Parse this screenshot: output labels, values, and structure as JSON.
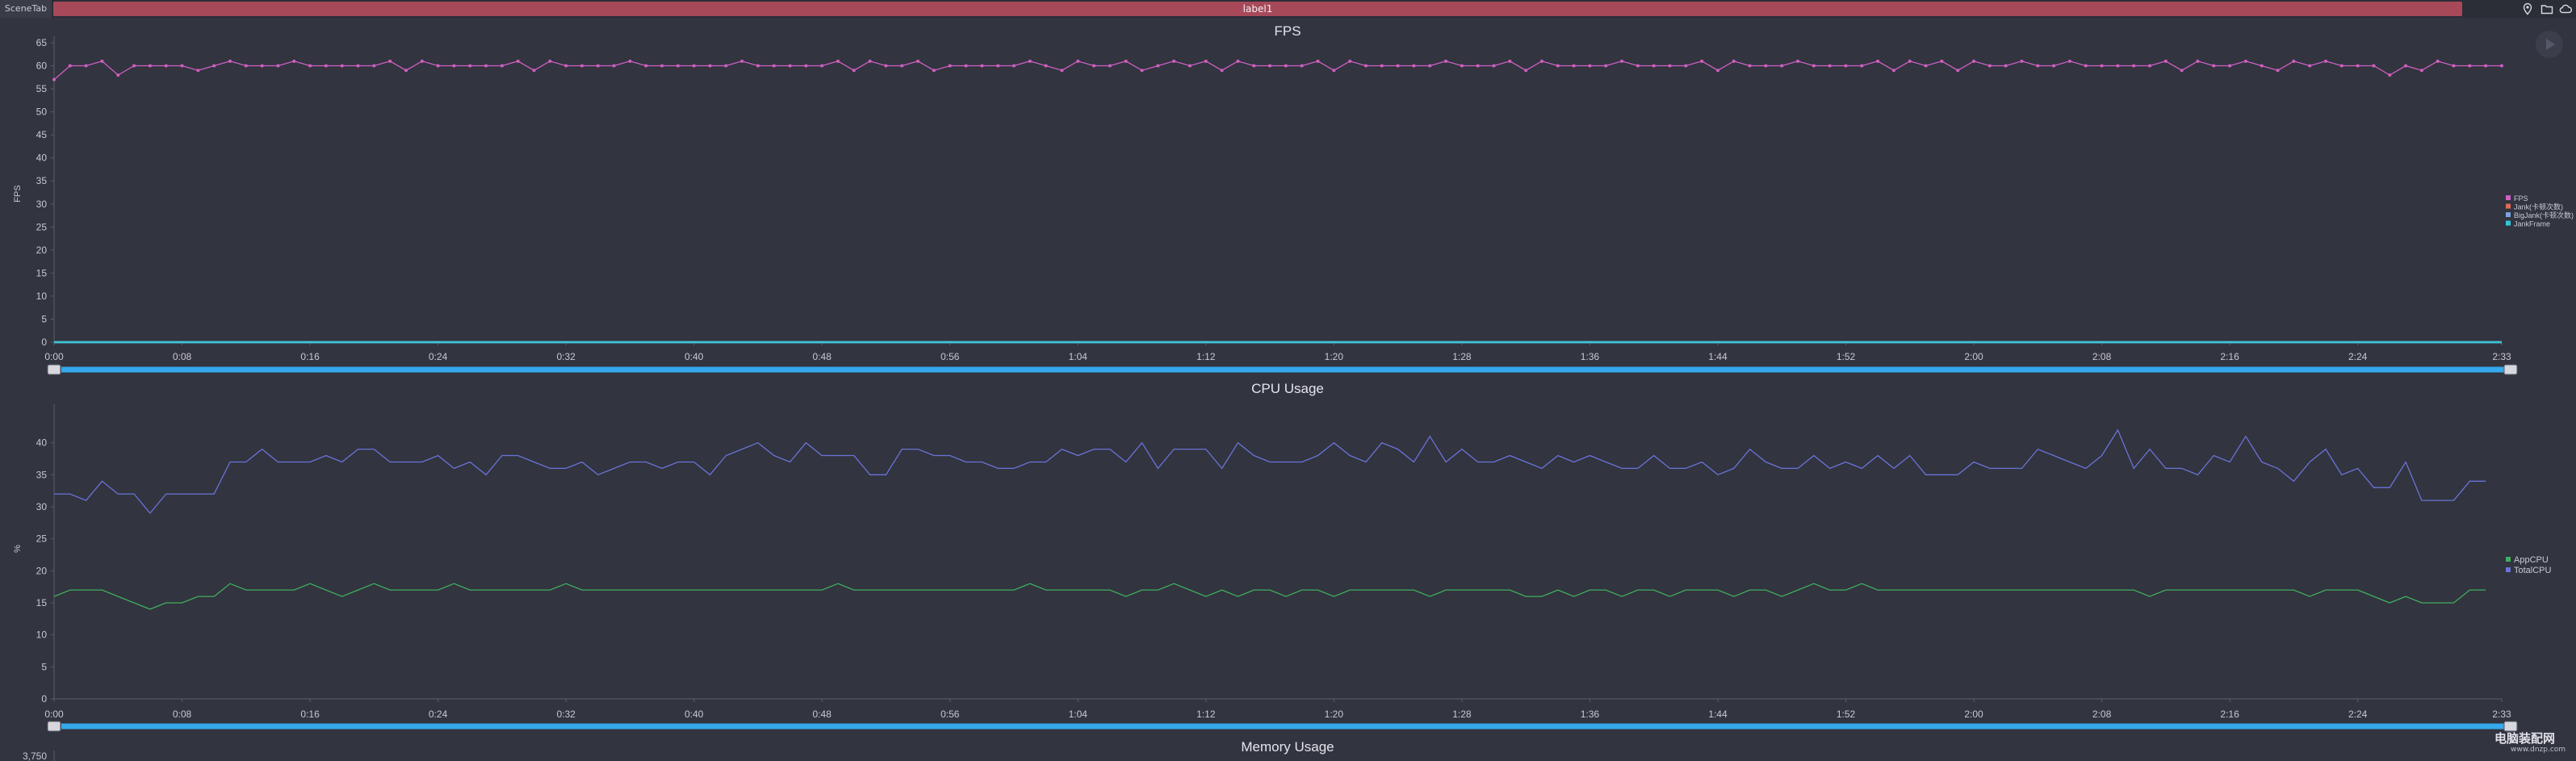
{
  "top": {
    "scene_tab": "SceneTab",
    "label": "label1"
  },
  "colors": {
    "background": "#32343f",
    "title_bar": "#a8495a",
    "fps": "#d05fc4",
    "jank": "#e06a5a",
    "big_jank": "#7aa2e0",
    "jank_frame": "#33c8d8",
    "app_cpu": "#3fae5e",
    "total_cpu": "#6a73d8",
    "slider": "#34a9ec"
  },
  "chart_data": [
    {
      "type": "line",
      "title": "FPS",
      "ylabel": "FPS",
      "ylim": [
        0,
        65
      ],
      "yticks": [
        "0",
        "5",
        "10",
        "15",
        "20",
        "25",
        "30",
        "35",
        "40",
        "45",
        "50",
        "55",
        "60",
        "65"
      ],
      "xlim": [
        0,
        153
      ],
      "xticks": [
        "0:00",
        "0:08",
        "0:16",
        "0:24",
        "0:32",
        "0:40",
        "0:48",
        "0:56",
        "1:04",
        "1:12",
        "1:20",
        "1:28",
        "1:36",
        "1:44",
        "1:52",
        "2:00",
        "2:08",
        "2:16",
        "2:24",
        "2:33"
      ],
      "legend": "right",
      "series": [
        {
          "name": "FPS",
          "color": "#d05fc4",
          "values": [
            57,
            60,
            60,
            61,
            58,
            60,
            60,
            60,
            60,
            59,
            60,
            61,
            60,
            60,
            60,
            61,
            60,
            60,
            60,
            60,
            60,
            61,
            59,
            61,
            60,
            60,
            60,
            60,
            60,
            61,
            59,
            61,
            60,
            60,
            60,
            60,
            61,
            60,
            60,
            60,
            60,
            60,
            60,
            61,
            60,
            60,
            60,
            60,
            60,
            61,
            59,
            61,
            60,
            60,
            61,
            59,
            60,
            60,
            60,
            60,
            60,
            61,
            60,
            59,
            61,
            60,
            60,
            61,
            59,
            60,
            61,
            60,
            61,
            59,
            61,
            60,
            60,
            60,
            60,
            61,
            59,
            61,
            60,
            60,
            60,
            60,
            60,
            61,
            60,
            60,
            60,
            61,
            59,
            61,
            60,
            60,
            60,
            60,
            61,
            60,
            60,
            60,
            60,
            61,
            59,
            61,
            60,
            60,
            60,
            61,
            60,
            60,
            60,
            60,
            61,
            59,
            61,
            60,
            61,
            59,
            61,
            60,
            60,
            61,
            60,
            60,
            61,
            60,
            60,
            60,
            60,
            60,
            61,
            59,
            61,
            60,
            60,
            61,
            60,
            59,
            61,
            60,
            61,
            60,
            60,
            60,
            58,
            60,
            59,
            61,
            60,
            60,
            60,
            60
          ]
        },
        {
          "name": "Jank(卡顿次数)",
          "color": "#e06a5a",
          "values": [
            0,
            0,
            0,
            0,
            0,
            0,
            0,
            0,
            0,
            0,
            0,
            0,
            0,
            0,
            0,
            0,
            0,
            0,
            0,
            0,
            0,
            0,
            0,
            0,
            0,
            0,
            0,
            0,
            0,
            0,
            0,
            0,
            0,
            0,
            0,
            0,
            0,
            0,
            0,
            0,
            0,
            0,
            0,
            0,
            0,
            0,
            0,
            0,
            0,
            0,
            0,
            0,
            0,
            0,
            0,
            0,
            0,
            0,
            0,
            0,
            0,
            0,
            0,
            0,
            0,
            0,
            0,
            0,
            0,
            0,
            0,
            0,
            0,
            0,
            0,
            0,
            0,
            0,
            0,
            0,
            0,
            0,
            0,
            0,
            0,
            0,
            0,
            0,
            0,
            0,
            0,
            0,
            0,
            0,
            0,
            0,
            0,
            0,
            0,
            0,
            0,
            0,
            0,
            0,
            0,
            0,
            0,
            0,
            0,
            0,
            0,
            0,
            0,
            0,
            0,
            0,
            0,
            0,
            0,
            0,
            0,
            0,
            0,
            0,
            0,
            0,
            0,
            0,
            0,
            0,
            0,
            0,
            0,
            0,
            0,
            0,
            0,
            0,
            0,
            0,
            0,
            0,
            0,
            0,
            0,
            0,
            0,
            0,
            0,
            0,
            0,
            0,
            0,
            0
          ]
        },
        {
          "name": "BigJank(卡顿次数)",
          "color": "#7aa2e0",
          "values": [
            0,
            0,
            0,
            0,
            0,
            0,
            0,
            0,
            0,
            0,
            0,
            0,
            0,
            0,
            0,
            0,
            0,
            0,
            0,
            0,
            0,
            0,
            0,
            0,
            0,
            0,
            0,
            0,
            0,
            0,
            0,
            0,
            0,
            0,
            0,
            0,
            0,
            0,
            0,
            0,
            0,
            0,
            0,
            0,
            0,
            0,
            0,
            0,
            0,
            0,
            0,
            0,
            0,
            0,
            0,
            0,
            0,
            0,
            0,
            0,
            0,
            0,
            0,
            0,
            0,
            0,
            0,
            0,
            0,
            0,
            0,
            0,
            0,
            0,
            0,
            0,
            0,
            0,
            0,
            0,
            0,
            0,
            0,
            0,
            0,
            0,
            0,
            0,
            0,
            0,
            0,
            0,
            0,
            0,
            0,
            0,
            0,
            0,
            0,
            0,
            0,
            0,
            0,
            0,
            0,
            0,
            0,
            0,
            0,
            0,
            0,
            0,
            0,
            0,
            0,
            0,
            0,
            0,
            0,
            0,
            0,
            0,
            0,
            0,
            0,
            0,
            0,
            0,
            0,
            0,
            0,
            0,
            0,
            0,
            0,
            0,
            0,
            0,
            0,
            0,
            0,
            0,
            0,
            0,
            0,
            0,
            0,
            0,
            0,
            0,
            0,
            0,
            0,
            0
          ]
        },
        {
          "name": "JankFrame",
          "color": "#33c8d8",
          "values": [
            0,
            0,
            0,
            0,
            0,
            0,
            0,
            0,
            0,
            0,
            0,
            0,
            0,
            0,
            0,
            0,
            0,
            0,
            0,
            0,
            0,
            0,
            0,
            0,
            0,
            0,
            0,
            0,
            0,
            0,
            0,
            0,
            0,
            0,
            0,
            0,
            0,
            0,
            0,
            0,
            0,
            0,
            0,
            0,
            0,
            0,
            0,
            0,
            0,
            0,
            0,
            0,
            0,
            0,
            0,
            0,
            0,
            0,
            0,
            0,
            0,
            0,
            0,
            0,
            0,
            0,
            0,
            0,
            0,
            0,
            0,
            0,
            0,
            0,
            0,
            0,
            0,
            0,
            0,
            0,
            0,
            0,
            0,
            0,
            0,
            0,
            0,
            0,
            0,
            0,
            0,
            0,
            0,
            0,
            0,
            0,
            0,
            0,
            0,
            0,
            0,
            0,
            0,
            0,
            0,
            0,
            0,
            0,
            0,
            0,
            0,
            0,
            0,
            0,
            0,
            0,
            0,
            0,
            0,
            0,
            0,
            0,
            0,
            0,
            0,
            0,
            0,
            0,
            0,
            0,
            0,
            0,
            0,
            0,
            0,
            0,
            0,
            0,
            0,
            0,
            0,
            0,
            0,
            0,
            0,
            0,
            0,
            0,
            0,
            0,
            0,
            0,
            0,
            0
          ]
        }
      ]
    },
    {
      "type": "line",
      "title": "CPU Usage",
      "ylabel": "%",
      "ylim": [
        0,
        45
      ],
      "yticks": [
        "0",
        "5",
        "10",
        "15",
        "20",
        "25",
        "30",
        "35",
        "40"
      ],
      "xlim": [
        0,
        153
      ],
      "xticks": [
        "0:00",
        "0:08",
        "0:16",
        "0:24",
        "0:32",
        "0:40",
        "0:48",
        "0:56",
        "1:04",
        "1:12",
        "1:20",
        "1:28",
        "1:36",
        "1:44",
        "1:52",
        "2:00",
        "2:08",
        "2:16",
        "2:24",
        "2:33"
      ],
      "legend": "right",
      "series": [
        {
          "name": "AppCPU",
          "color": "#3fae5e",
          "values": [
            16,
            17,
            17,
            17,
            16,
            15,
            14,
            15,
            15,
            16,
            16,
            18,
            17,
            17,
            17,
            17,
            18,
            17,
            16,
            17,
            18,
            17,
            17,
            17,
            17,
            18,
            17,
            17,
            17,
            17,
            17,
            17,
            18,
            17,
            17,
            17,
            17,
            17,
            17,
            17,
            17,
            17,
            17,
            17,
            17,
            17,
            17,
            17,
            17,
            18,
            17,
            17,
            17,
            17,
            17,
            17,
            17,
            17,
            17,
            17,
            17,
            18,
            17,
            17,
            17,
            17,
            17,
            16,
            17,
            17,
            18,
            17,
            16,
            17,
            16,
            17,
            17,
            16,
            17,
            17,
            16,
            17,
            17,
            17,
            17,
            17,
            16,
            17,
            17,
            17,
            17,
            17,
            16,
            16,
            17,
            16,
            17,
            17,
            16,
            17,
            17,
            16,
            17,
            17,
            17,
            16,
            17,
            17,
            16,
            17,
            18,
            17,
            17,
            18,
            17,
            17,
            17,
            17,
            17,
            17,
            17,
            17,
            17,
            17,
            17,
            17,
            17,
            17,
            17,
            17,
            17,
            16,
            17,
            17,
            17,
            17,
            17,
            17,
            17,
            17,
            17,
            16,
            17,
            17,
            17,
            16,
            15,
            16,
            15,
            15,
            15,
            17,
            17
          ]
        },
        {
          "name": "TotalCPU",
          "color": "#6a73d8",
          "values": [
            32,
            32,
            31,
            34,
            32,
            32,
            29,
            32,
            32,
            32,
            32,
            37,
            37,
            39,
            37,
            37,
            37,
            38,
            37,
            39,
            39,
            37,
            37,
            37,
            38,
            36,
            37,
            35,
            38,
            38,
            37,
            36,
            36,
            37,
            35,
            36,
            37,
            37,
            36,
            37,
            37,
            35,
            38,
            39,
            40,
            38,
            37,
            40,
            38,
            38,
            38,
            35,
            35,
            39,
            39,
            38,
            38,
            37,
            37,
            36,
            36,
            37,
            37,
            39,
            38,
            39,
            39,
            37,
            40,
            36,
            39,
            39,
            39,
            36,
            40,
            38,
            37,
            37,
            37,
            38,
            40,
            38,
            37,
            40,
            39,
            37,
            41,
            37,
            39,
            37,
            37,
            38,
            37,
            36,
            38,
            37,
            38,
            37,
            36,
            36,
            38,
            36,
            36,
            37,
            35,
            36,
            39,
            37,
            36,
            36,
            38,
            36,
            37,
            36,
            38,
            36,
            38,
            35,
            35,
            35,
            37,
            36,
            36,
            36,
            39,
            38,
            37,
            36,
            38,
            42,
            36,
            39,
            36,
            36,
            35,
            38,
            37,
            41,
            37,
            36,
            34,
            37,
            39,
            35,
            36,
            33,
            33,
            37,
            31,
            31,
            31,
            34,
            34
          ]
        }
      ]
    },
    {
      "type": "line",
      "title": "Memory Usage",
      "yticks": [
        "3,750"
      ]
    }
  ]
}
